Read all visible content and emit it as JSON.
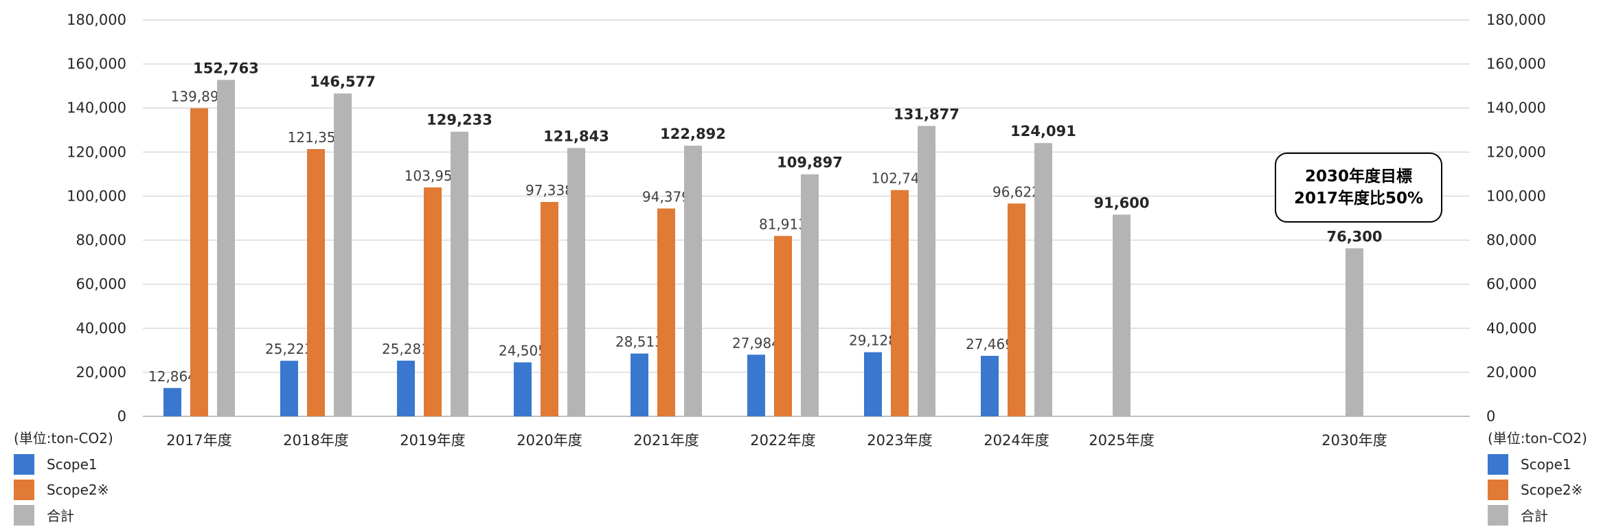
{
  "chart_data": {
    "type": "bar",
    "categories": [
      "2017年度",
      "2018年度",
      "2019年度",
      "2020年度",
      "2021年度",
      "2022年度",
      "2023年度",
      "2024年度",
      "2025年度",
      "2030年度"
    ],
    "series": [
      {
        "name": "Scope1",
        "color": "#3a78cf",
        "values": [
          12864,
          25223,
          25281,
          24505,
          28513,
          27984,
          29128,
          27469,
          null,
          null
        ],
        "labels": [
          "12,864",
          "25,223",
          "25,281",
          "24,505",
          "28,513",
          "27,984",
          "29,128",
          "27,469",
          "",
          ""
        ]
      },
      {
        "name": "Scope2※",
        "color": "#e07a35",
        "values": [
          139899,
          121354,
          103952,
          97338,
          94379,
          81913,
          102749,
          96622,
          null,
          null
        ],
        "labels": [
          "139,899",
          "121,354",
          "103,952",
          "97,338",
          "94,379",
          "81,913",
          "102,749",
          "96,622",
          "",
          ""
        ]
      },
      {
        "name": "合計",
        "color": "#b4b4b4",
        "values": [
          152763,
          146577,
          129233,
          121843,
          122892,
          109897,
          131877,
          124091,
          91600,
          76300
        ],
        "labels": [
          "152,763",
          "146,577",
          "129,233",
          "121,843",
          "122,892",
          "109,897",
          "131,877",
          "124,091",
          "91,600",
          "76,300"
        ]
      }
    ],
    "ylim": [
      0,
      180000
    ],
    "yticks": [
      "0",
      "20,000",
      "40,000",
      "60,000",
      "80,000",
      "100,000",
      "120,000",
      "140,000",
      "160,000",
      "180,000"
    ],
    "y_tick_values": [
      0,
      20000,
      40000,
      60000,
      80000,
      100000,
      120000,
      140000,
      160000,
      180000
    ],
    "unit_label": "(単位:ton-CO2)",
    "grid": true,
    "legend_placement": "bottom-left and bottom-right"
  },
  "annotation": {
    "line1": "2030年度目標",
    "line2": "2017年度比50%"
  }
}
